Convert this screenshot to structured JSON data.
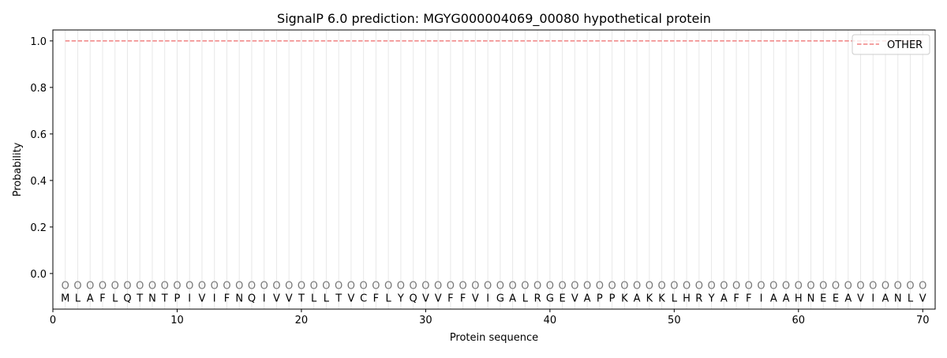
{
  "chart_data": {
    "type": "line",
    "title": "SignalP 6.0 prediction: MGYG000004069_00080 hypothetical protein",
    "xlabel": "Protein sequence",
    "ylabel": "Probability",
    "xlim": [
      0,
      71
    ],
    "ylim": [
      -0.153,
      1.047
    ],
    "xticks": [
      "0",
      "10",
      "20",
      "30",
      "40",
      "50",
      "60",
      "70"
    ],
    "yticks": [
      "0.0",
      "0.2",
      "0.4",
      "0.6",
      "0.8",
      "1.0"
    ],
    "grid": "vertical lines at each residue",
    "legend_position": "top-right",
    "sequence": [
      "M",
      "L",
      "A",
      "F",
      "L",
      "Q",
      "T",
      "N",
      "T",
      "P",
      "I",
      "V",
      "I",
      "F",
      "N",
      "Q",
      "I",
      "V",
      "V",
      "T",
      "L",
      "L",
      "T",
      "V",
      "C",
      "F",
      "L",
      "Y",
      "Q",
      "V",
      "V",
      "F",
      "F",
      "V",
      "I",
      "G",
      "A",
      "L",
      "R",
      "G",
      "E",
      "V",
      "A",
      "P",
      "P",
      "K",
      "A",
      "K",
      "K",
      "L",
      "H",
      "R",
      "Y",
      "A",
      "F",
      "F",
      "I",
      "A",
      "A",
      "H",
      "N",
      "E",
      "E",
      "A",
      "V",
      "I",
      "A",
      "N",
      "L",
      "V"
    ],
    "region_labels": "OOOOOOOOOOOOOOOOOOOOOOOOOOOOOOOOOOOOOOOOOOOOOOOOOOOOOOOOOOOOOOOOOOOOOO",
    "series": [
      {
        "name": "OTHER",
        "color": "#f08080",
        "style": "dashed",
        "x_range": [
          1,
          70
        ],
        "value": 1.0
      }
    ]
  }
}
